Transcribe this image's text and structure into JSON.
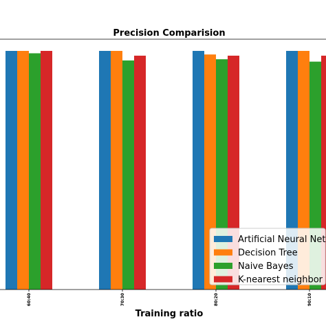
{
  "chart_data": {
    "type": "bar",
    "title": "Precision Comparision",
    "xlabel": "Training ratio",
    "ylabel": "",
    "categories": [
      "60:40",
      "70:30",
      "80:20",
      "90:10"
    ],
    "ylim": [
      0,
      1.0
    ],
    "legend_position": "bottom-right",
    "series": [
      {
        "name": "Artificial Neural Network",
        "color": "#1f77b4",
        "values": [
          1.0,
          1.0,
          1.0,
          1.0
        ]
      },
      {
        "name": "Decision Tree",
        "color": "#ff7f0e",
        "values": [
          1.0,
          1.0,
          0.985,
          1.0
        ]
      },
      {
        "name": "Naive Bayes",
        "color": "#2ca02c",
        "values": [
          0.99,
          0.96,
          0.965,
          0.955
        ]
      },
      {
        "name": "K-nearest neighbor",
        "color": "#d62728",
        "values": [
          1.0,
          0.98,
          0.98,
          0.98
        ]
      }
    ]
  }
}
